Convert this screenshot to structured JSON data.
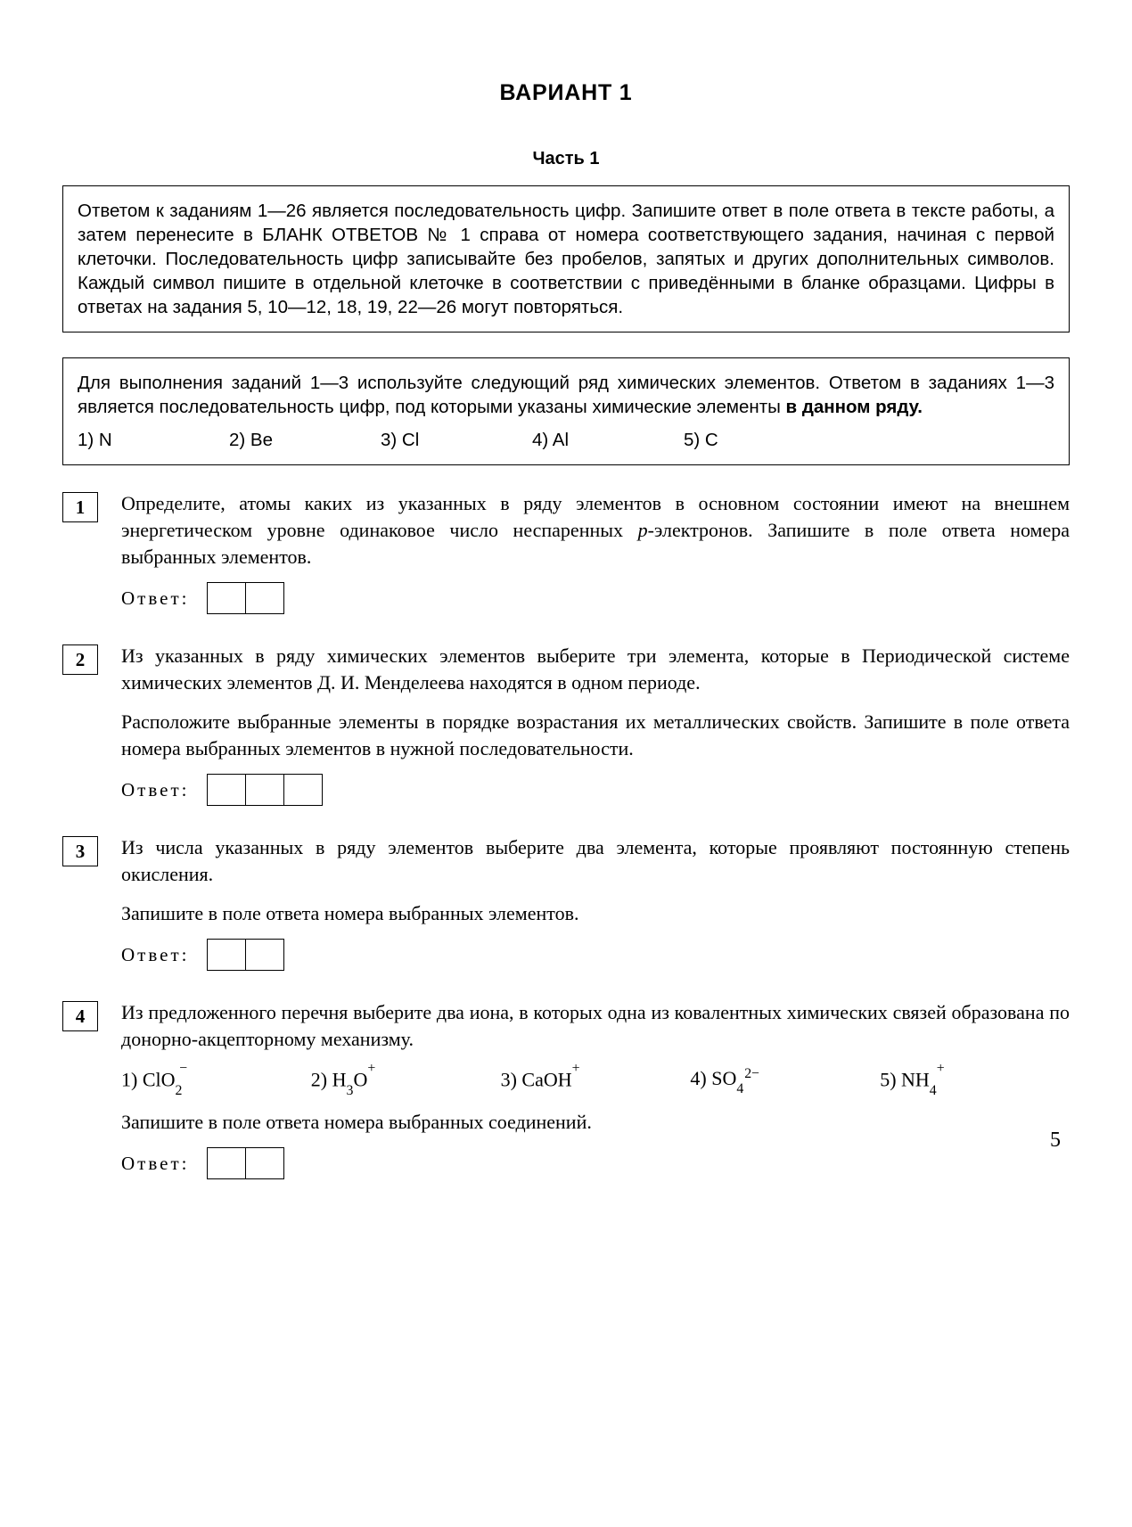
{
  "title": "ВАРИАНТ 1",
  "part": "Часть 1",
  "instruction1": "Ответом к заданиям 1—26 является последовательность цифр. Запишите ответ в поле ответа в тексте работы, а затем перенесите в БЛАНК ОТВЕТОВ № 1 справа от номера соответствующего задания, начиная с первой клеточки. Последовательность цифр записывайте без пробелов, запятых и других дополнительных символов. Каждый символ пишите в отдельной клеточке в соответствии с приведёнными в бланке образцами. Цифры в ответах на задания 5, 10—12, 18, 19, 22—26 могут повторяться.",
  "instruction2_pre": "Для выполнения заданий 1—3 используйте следующий ряд химических элементов. Ответом в заданиях 1—3 является последовательность цифр, под которыми указаны химические элементы ",
  "instruction2_bold": "в данном ряду.",
  "elements": [
    "1) N",
    "2) Be",
    "3) Cl",
    "4) Al",
    "5) C"
  ],
  "element_widths": [
    170,
    170,
    170,
    170,
    170
  ],
  "answer_label": "Ответ:",
  "tasks": [
    {
      "num": "1",
      "paragraphs_html": [
        "Определите, атомы каких из указанных в ряду элементов в основном состоянии имеют на внешнем энергетическом уровне одинаковое число неспаренных <span class=\"italic\">p</span>-электронов. Запишите в поле ответа номера выбранных элементов."
      ],
      "cells": 2,
      "options_html": null,
      "post_text": null
    },
    {
      "num": "2",
      "paragraphs_html": [
        "Из указанных в ряду химических элементов выберите три элемента, которые в Периодической системе химических элементов Д. И. Менделеева находятся в одном периоде.",
        "Расположите выбранные элементы в порядке возрастания их металлических свойств. Запишите в поле ответа номера выбранных элементов в нужной последовательности."
      ],
      "cells": 3,
      "options_html": null,
      "post_text": null
    },
    {
      "num": "3",
      "paragraphs_html": [
        "Из числа указанных в ряду элементов выберите два элемента, которые проявляют постоянную степень окисления.",
        "Запишите в поле ответа номера выбранных элементов."
      ],
      "cells": 2,
      "options_html": null,
      "post_text": null
    },
    {
      "num": "4",
      "paragraphs_html": [
        "Из предложенного перечня выберите два иона, в которых одна из ковалентных химических связей образована по донорно-акцепторному механизму."
      ],
      "cells": 2,
      "options_html": [
        "1) ClO<sub>2</sub><sup style=\"margin-left:-3px;\">&#8722;</sup>",
        "2) H<sub>3</sub>O<sup>+</sup>",
        "3) CaOH<sup>+</sup>",
        "4) SO<sub>4</sub><span class=\"stack\"><span>2&#8722;</span><span>&nbsp;</span></span>",
        "5) NH<sub>4</sub><sup>+</sup>"
      ],
      "post_text": "Запишите в поле ответа номера выбранных соединений."
    }
  ],
  "page_number": "5"
}
